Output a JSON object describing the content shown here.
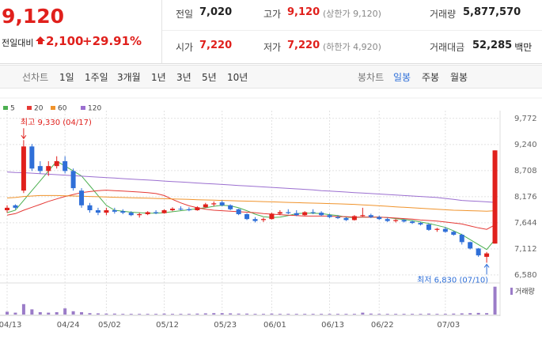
{
  "header": {
    "price": "9,120",
    "change_label": "전일대비",
    "change": "2,100",
    "change_pct": "+29.91%",
    "color": "#e0201c"
  },
  "stats": [
    {
      "label": "전일",
      "value": "7,020",
      "color": "#222"
    },
    {
      "label": "고가",
      "value": "9,120",
      "note": "(상한가 9,120)",
      "color": "#e0201c"
    },
    {
      "label": "거래량",
      "value": "5,877,570",
      "color": "#222"
    },
    {
      "label": "시가",
      "value": "7,220",
      "color": "#e0201c"
    },
    {
      "label": "저가",
      "value": "7,220",
      "note": "(하한가 4,920)",
      "color": "#e0201c"
    },
    {
      "label": "거래대금",
      "value": "52,285",
      "unit": "백만",
      "color": "#222"
    }
  ],
  "tabs_line": {
    "label": "선차트",
    "items": [
      "1일",
      "1주일",
      "3개월",
      "1년",
      "3년",
      "5년",
      "10년"
    ]
  },
  "tabs_candle": {
    "label": "봉차트",
    "items": [
      "일봉",
      "주봉",
      "월봉"
    ],
    "selected": 0
  },
  "chart_data": {
    "type": "candlestick",
    "categories": [
      "04/13",
      null,
      null,
      null,
      null,
      null,
      null,
      "04/24",
      null,
      null,
      null,
      null,
      "05/02",
      null,
      null,
      null,
      null,
      null,
      null,
      "05/12",
      null,
      null,
      null,
      null,
      null,
      null,
      "05/23",
      null,
      null,
      null,
      null,
      null,
      "06/01",
      null,
      null,
      null,
      null,
      null,
      null,
      "06/13",
      null,
      null,
      null,
      null,
      null,
      "06/22",
      null,
      null,
      null,
      null,
      null,
      null,
      null,
      "07/03",
      null,
      null,
      null,
      null,
      null,
      null
    ],
    "open": [
      7900,
      8000,
      8300,
      9200,
      8800,
      8700,
      8800,
      8900,
      8700,
      8300,
      8000,
      7900,
      7850,
      7900,
      7880,
      7850,
      7800,
      7820,
      7860,
      7840,
      7900,
      7930,
      7920,
      7900,
      7960,
      8020,
      8060,
      8000,
      7920,
      7820,
      7720,
      7700,
      7720,
      7830,
      7860,
      7840,
      7800,
      7860,
      7850,
      7800,
      7760,
      7740,
      7700,
      7780,
      7800,
      7760,
      7720,
      7680,
      7700,
      7670,
      7640,
      7610,
      7500,
      7520,
      7460,
      7400,
      7250,
      7120,
      6950,
      7220
    ],
    "high": [
      8000,
      8020,
      9330,
      9250,
      8900,
      8900,
      9000,
      9000,
      8750,
      8350,
      8050,
      7950,
      7950,
      7950,
      7920,
      7880,
      7850,
      7880,
      7900,
      7920,
      7960,
      7980,
      7960,
      7980,
      8050,
      8080,
      8100,
      8020,
      7930,
      7840,
      7760,
      7750,
      7850,
      7900,
      7920,
      7900,
      7880,
      7920,
      7880,
      7830,
      7800,
      7760,
      7800,
      7950,
      7830,
      7790,
      7750,
      7720,
      7720,
      7690,
      7660,
      7630,
      7540,
      7560,
      7480,
      7420,
      7260,
      7130,
      7050,
      9120
    ],
    "low": [
      7850,
      7920,
      8250,
      8700,
      8650,
      8600,
      8750,
      8650,
      8300,
      7950,
      7850,
      7800,
      7800,
      7830,
      7820,
      7780,
      7750,
      7800,
      7820,
      7830,
      7880,
      7900,
      7880,
      7890,
      7950,
      7980,
      7980,
      7900,
      7800,
      7700,
      7650,
      7660,
      7710,
      7800,
      7820,
      7780,
      7790,
      7820,
      7780,
      7740,
      7720,
      7680,
      7690,
      7770,
      7740,
      7700,
      7660,
      7650,
      7650,
      7620,
      7590,
      7480,
      7460,
      7440,
      7380,
      7200,
      7100,
      6950,
      6830,
      7220
    ],
    "close": [
      7950,
      7950,
      9200,
      8750,
      8700,
      8800,
      8900,
      8700,
      8350,
      8000,
      7900,
      7850,
      7900,
      7870,
      7850,
      7800,
      7820,
      7860,
      7840,
      7900,
      7930,
      7920,
      7900,
      7960,
      8020,
      8040,
      8000,
      7920,
      7820,
      7720,
      7680,
      7720,
      7830,
      7860,
      7840,
      7800,
      7860,
      7850,
      7800,
      7760,
      7740,
      7700,
      7780,
      7800,
      7760,
      7720,
      7680,
      7700,
      7670,
      7640,
      7610,
      7500,
      7520,
      7460,
      7400,
      7250,
      7120,
      6980,
      7020,
      9120
    ],
    "up_color": "#e0201c",
    "down_color": "#2f6fd8",
    "series": [
      {
        "name": "5",
        "color": "#4caf50",
        "values": [
          7850,
          7900,
          8100,
          8300,
          8500,
          8700,
          8900,
          8800,
          8700,
          8600,
          8400,
          8200,
          8000,
          7900,
          7880,
          7860,
          7850,
          7840,
          7840,
          7850,
          7870,
          7890,
          7910,
          7930,
          7950,
          7980,
          8000,
          7990,
          7950,
          7890,
          7820,
          7770,
          7750,
          7760,
          7790,
          7830,
          7840,
          7840,
          7830,
          7810,
          7790,
          7760,
          7750,
          7760,
          7760,
          7760,
          7750,
          7730,
          7710,
          7690,
          7660,
          7630,
          7590,
          7550,
          7480,
          7400,
          7300,
          7200,
          7100,
          7300
        ]
      },
      {
        "name": "20",
        "color": "#e53935",
        "values": [
          7800,
          7830,
          7900,
          7960,
          8020,
          8080,
          8130,
          8180,
          8220,
          8260,
          8280,
          8300,
          8310,
          8300,
          8290,
          8280,
          8270,
          8260,
          8240,
          8200,
          8120,
          8050,
          7990,
          7950,
          7920,
          7900,
          7890,
          7880,
          7870,
          7860,
          7850,
          7830,
          7820,
          7810,
          7800,
          7790,
          7780,
          7780,
          7780,
          7780,
          7770,
          7770,
          7760,
          7760,
          7760,
          7760,
          7750,
          7740,
          7730,
          7720,
          7700,
          7690,
          7680,
          7660,
          7640,
          7620,
          7580,
          7540,
          7510,
          7600
        ]
      },
      {
        "name": "60",
        "color": "#f0932b",
        "values": [
          8150,
          8160,
          8180,
          8190,
          8200,
          8200,
          8200,
          8195,
          8190,
          8185,
          8180,
          8175,
          8170,
          8165,
          8160,
          8155,
          8150,
          8145,
          8140,
          8135,
          8130,
          8125,
          8120,
          8115,
          8110,
          8105,
          8100,
          8095,
          8090,
          8085,
          8080,
          8075,
          8070,
          8065,
          8060,
          8055,
          8050,
          8045,
          8040,
          8035,
          8030,
          8025,
          8020,
          8010,
          8000,
          7990,
          7980,
          7970,
          7960,
          7950,
          7940,
          7930,
          7920,
          7910,
          7900,
          7895,
          7890,
          7885,
          7880,
          7890
        ]
      },
      {
        "name": "120",
        "color": "#9b6fd0",
        "values": [
          8680,
          8670,
          8665,
          8655,
          8645,
          8635,
          8625,
          8615,
          8605,
          8595,
          8585,
          8575,
          8565,
          8555,
          8545,
          8535,
          8525,
          8515,
          8505,
          8495,
          8485,
          8475,
          8465,
          8455,
          8445,
          8435,
          8425,
          8415,
          8405,
          8395,
          8385,
          8375,
          8365,
          8355,
          8345,
          8335,
          8325,
          8315,
          8300,
          8290,
          8280,
          8270,
          8260,
          8250,
          8240,
          8230,
          8220,
          8210,
          8200,
          8190,
          8180,
          8170,
          8160,
          8140,
          8120,
          8100,
          8090,
          8080,
          8070,
          8060
        ]
      }
    ],
    "volume": [
      600000,
      400000,
      2200000,
      1100000,
      500000,
      400000,
      500000,
      1300000,
      700000,
      500000,
      300000,
      250000,
      200000,
      200000,
      150000,
      150000,
      150000,
      150000,
      150000,
      200000,
      150000,
      150000,
      150000,
      200000,
      250000,
      300000,
      300000,
      250000,
      200000,
      200000,
      150000,
      150000,
      200000,
      150000,
      150000,
      150000,
      150000,
      150000,
      150000,
      150000,
      150000,
      150000,
      150000,
      400000,
      200000,
      150000,
      150000,
      150000,
      150000,
      150000,
      150000,
      200000,
      150000,
      150000,
      200000,
      250000,
      300000,
      350000,
      300000,
      5877570
    ],
    "volume_name": "거래량",
    "volume_color": "#9b7cc8",
    "volume_lim": [
      0,
      6000000
    ],
    "ylim": [
      6450,
      9930
    ],
    "yticks": [
      {
        "value": 9772,
        "label": "9,772"
      },
      {
        "value": 9240,
        "label": "9,240"
      },
      {
        "value": 8708,
        "label": "8,708"
      },
      {
        "value": 8176,
        "label": "8,176"
      },
      {
        "value": 7644,
        "label": "7,644"
      },
      {
        "value": 7112,
        "label": "7,112"
      },
      {
        "value": 6580,
        "label": "6,580"
      }
    ],
    "grid": true,
    "annotations": [
      {
        "text": "최고 9,330 (04/17)",
        "index": 2,
        "value": 9330,
        "position": "above",
        "color": "#e0201c"
      },
      {
        "text": "최저 6,830 (07/10)",
        "index": 58,
        "value": 6830,
        "position": "below",
        "color": "#2f6fd8"
      }
    ]
  }
}
